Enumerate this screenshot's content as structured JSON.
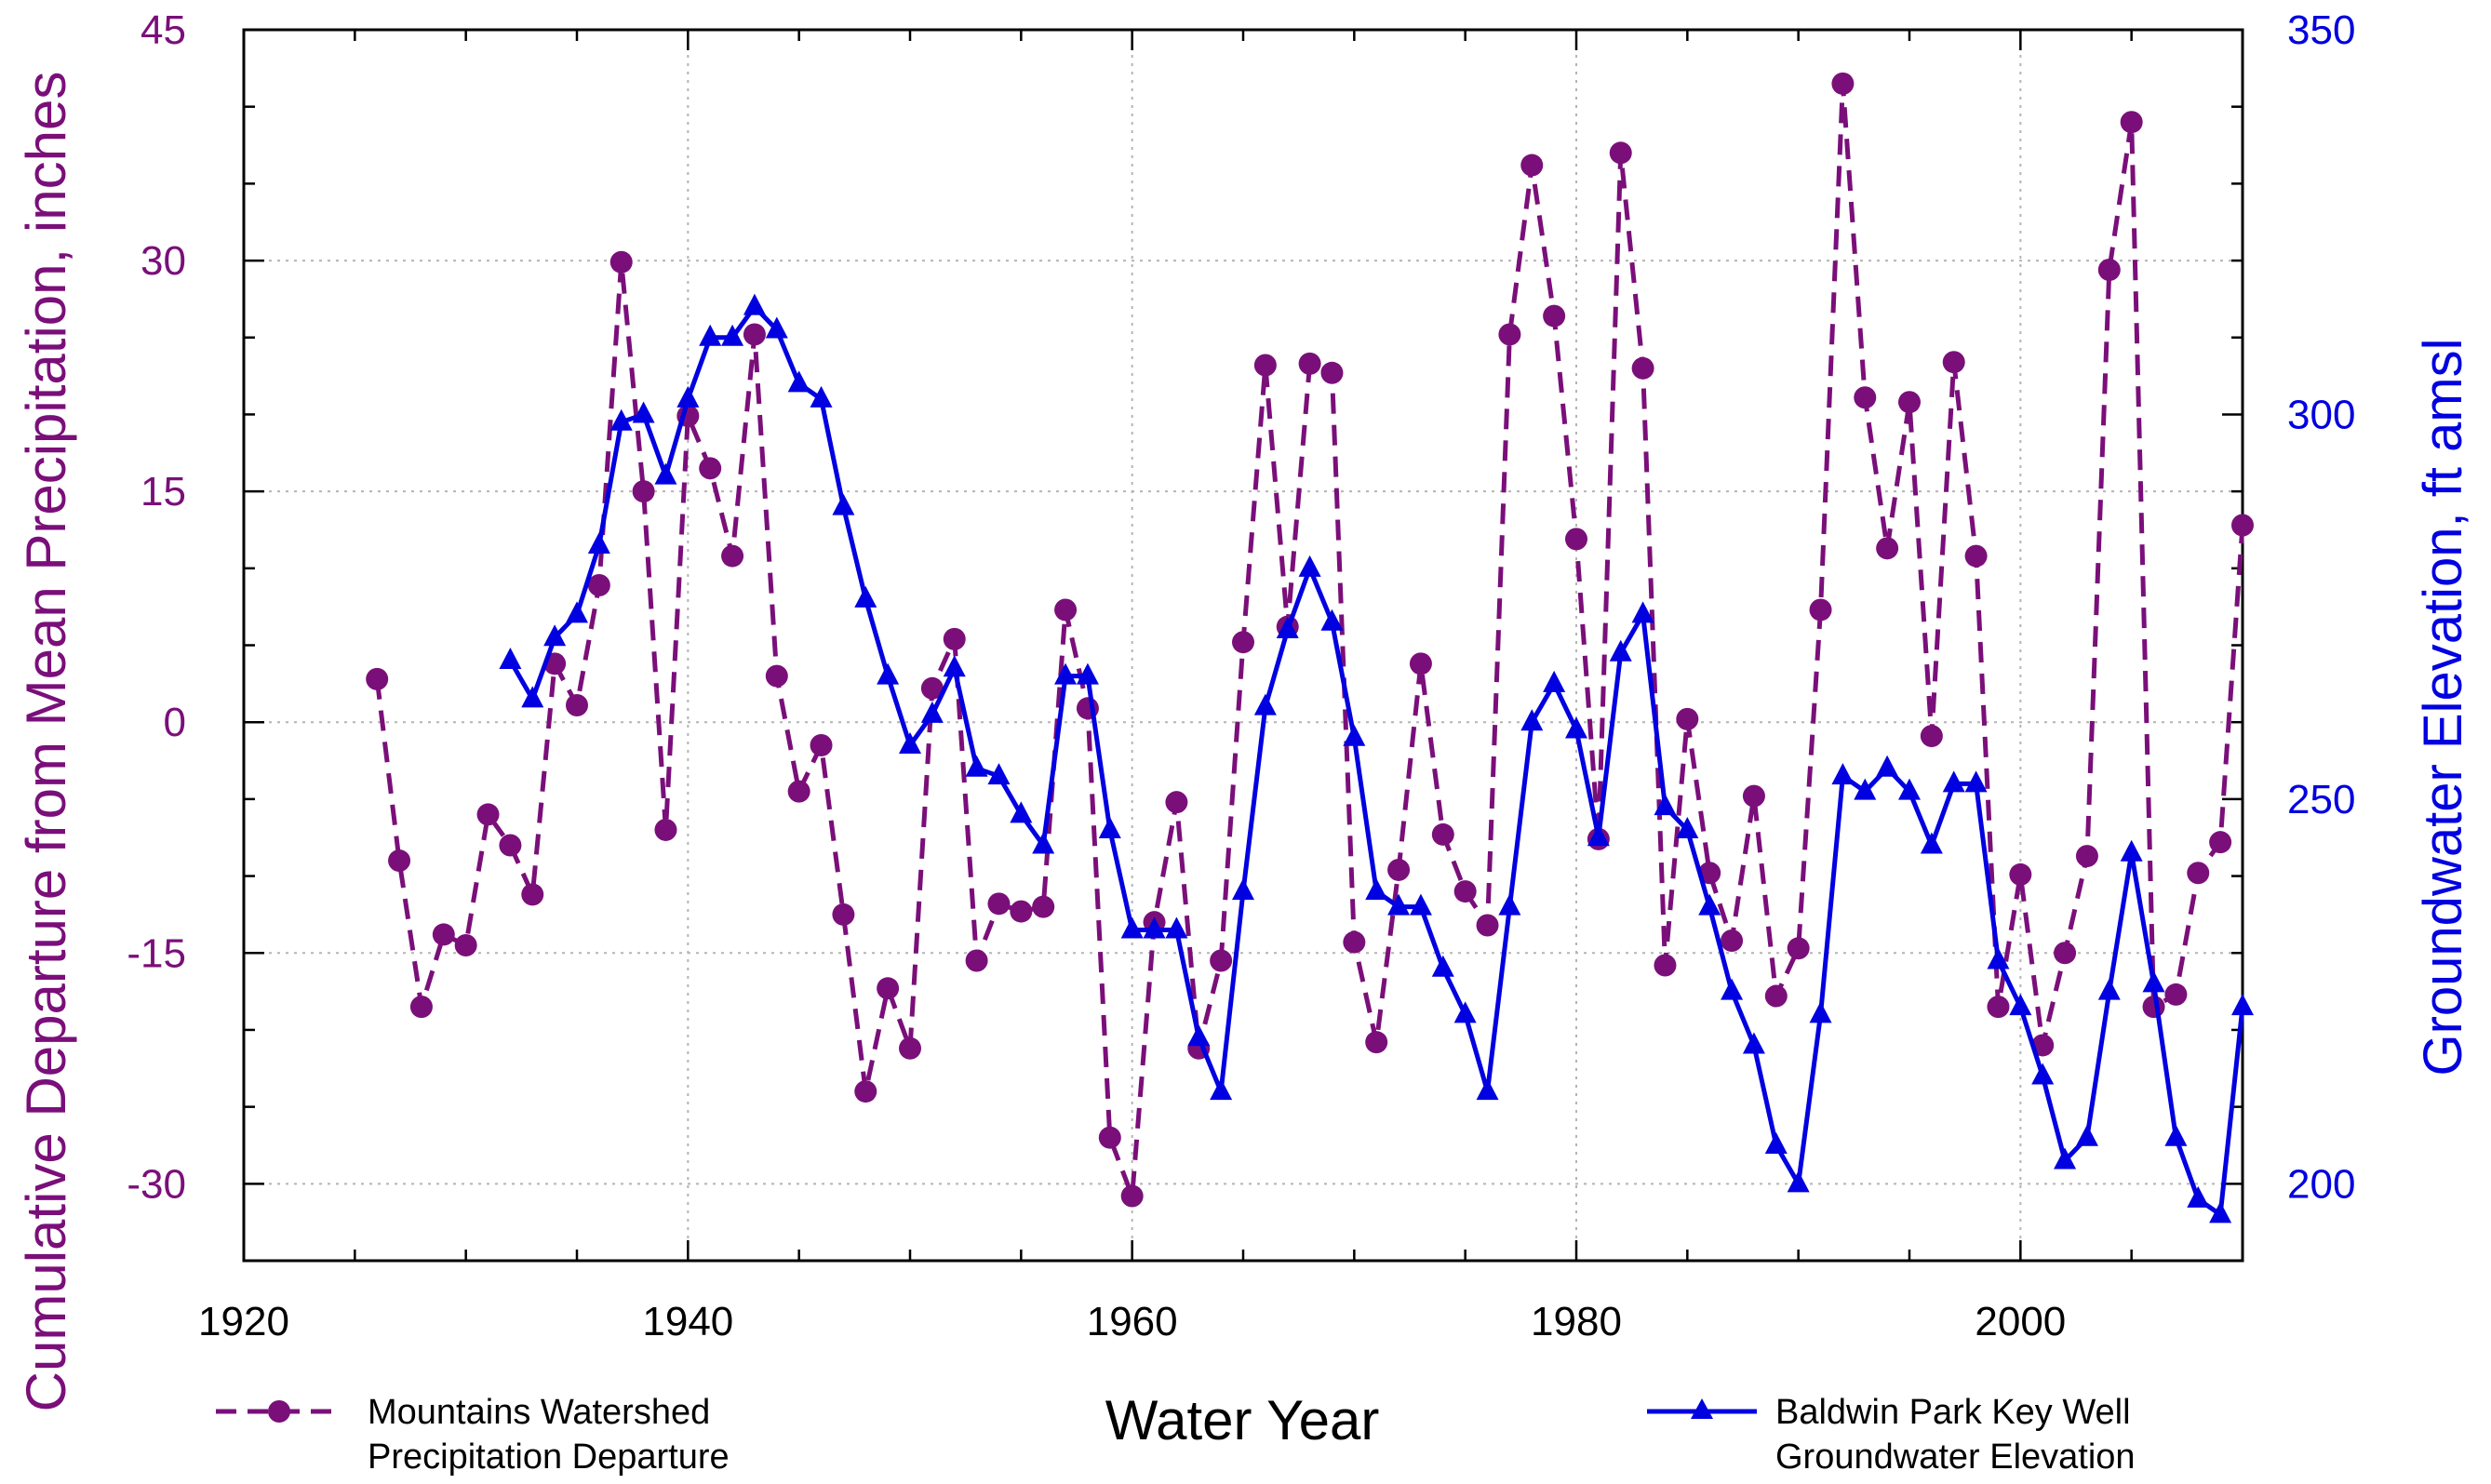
{
  "colors": {
    "precip": "#7a0f7a",
    "gw": "#0000e0",
    "grid": "#b4b4b4",
    "axis": "#000000"
  },
  "chart_data": {
    "type": "line",
    "xlabel": "Water Year",
    "ylabel_left": "Cumulative Departure from Mean Precipitation, inches",
    "ylabel_right": "Groundwater Elevation, ft amsl",
    "xlim": [
      1920,
      2010
    ],
    "ylim_left": [
      -35,
      45
    ],
    "ylim_right": [
      190,
      350
    ],
    "x_ticks": [
      "1920",
      "1940",
      "1960",
      "1980",
      "2000"
    ],
    "y_left_ticks": [
      "45",
      "30",
      "15",
      "0",
      "-15",
      "-30"
    ],
    "y_right_ticks": [
      "350",
      "300",
      "250",
      "200"
    ],
    "grid": true,
    "series": [
      {
        "name_lines": [
          "Mountains Watershed",
          "Precipitation Departure"
        ],
        "axis": "left",
        "style": "dashed-circle",
        "x": [
          1926,
          1927,
          1928,
          1929,
          1930,
          1931,
          1932,
          1933,
          1934,
          1935,
          1936,
          1937,
          1938,
          1939,
          1940,
          1941,
          1942,
          1943,
          1944,
          1945,
          1946,
          1947,
          1948,
          1949,
          1950,
          1951,
          1952,
          1953,
          1954,
          1955,
          1956,
          1957,
          1958,
          1959,
          1960,
          1961,
          1962,
          1963,
          1964,
          1965,
          1966,
          1967,
          1968,
          1969,
          1970,
          1971,
          1972,
          1973,
          1974,
          1975,
          1976,
          1977,
          1978,
          1979,
          1980,
          1981,
          1982,
          1983,
          1984,
          1985,
          1986,
          1987,
          1988,
          1989,
          1990,
          1991,
          1992,
          1993,
          1994,
          1995,
          1996,
          1997,
          1998,
          1999,
          2000,
          2001,
          2002,
          2003,
          2004,
          2005,
          2006,
          2007,
          2008,
          2009,
          2010
        ],
        "y": [
          2.8,
          -9,
          -18.5,
          -13.8,
          -14.5,
          -6,
          -8,
          -11.2,
          3.8,
          1.1,
          8.9,
          29.9,
          15,
          -7,
          19.9,
          16.5,
          10.8,
          25.2,
          3,
          -4.5,
          -1.5,
          -12.5,
          -24,
          -17.3,
          -21.2,
          2.2,
          5.4,
          -15.5,
          -11.8,
          -12.3,
          -12,
          7.3,
          0.9,
          -27,
          -30.8,
          -13,
          -5.2,
          -21.2,
          -15.5,
          5.2,
          23.2,
          6.2,
          23.3,
          22.7,
          -14.3,
          -20.8,
          -9.6,
          3.8,
          -7.3,
          -11,
          -13.2,
          25.2,
          36.2,
          26.4,
          11.9,
          -7.6,
          37,
          23,
          -15.8,
          0.2,
          -9.8,
          -14.2,
          -4.8,
          -17.8,
          -14.7,
          7.3,
          41.5,
          21.1,
          11.3,
          20.8,
          -0.9,
          23.4,
          10.8,
          -18.5,
          -9.9,
          -21,
          -15,
          -8.7,
          29.4,
          39,
          -18.5,
          -17.7,
          -9.8,
          -7.8,
          12.8
        ]
      },
      {
        "name_lines": [
          "Baldwin Park Key Well",
          "Groundwater Elevation"
        ],
        "axis": "right",
        "style": "solid-triangle",
        "x": [
          1932,
          1933,
          1934,
          1935,
          1936,
          1937,
          1938,
          1939,
          1940,
          1941,
          1942,
          1943,
          1944,
          1945,
          1946,
          1947,
          1948,
          1949,
          1950,
          1951,
          1952,
          1953,
          1954,
          1955,
          1956,
          1957,
          1958,
          1959,
          1960,
          1961,
          1962,
          1963,
          1964,
          1965,
          1966,
          1967,
          1968,
          1969,
          1970,
          1971,
          1972,
          1973,
          1974,
          1975,
          1976,
          1977,
          1978,
          1979,
          1980,
          1981,
          1982,
          1983,
          1984,
          1985,
          1986,
          1987,
          1988,
          1989,
          1990,
          1991,
          1992,
          1993,
          1994,
          1995,
          1996,
          1997,
          1998,
          1999,
          2000,
          2001,
          2002,
          2003,
          2004,
          2005,
          2006,
          2007,
          2008,
          2009,
          2010
        ],
        "y": [
          268,
          263,
          271,
          274,
          283,
          299,
          300,
          292,
          302,
          310,
          310,
          314,
          311,
          304,
          302,
          288,
          276,
          266,
          257,
          261,
          267,
          254,
          253,
          248,
          244,
          266,
          266,
          246,
          233,
          233,
          233,
          219,
          212,
          238,
          262,
          272,
          280,
          273,
          258,
          238,
          236,
          236,
          228,
          222,
          212,
          236,
          260,
          265,
          259,
          245,
          269,
          274,
          249,
          246,
          236,
          225,
          218,
          205,
          200,
          222,
          253,
          251,
          254,
          251,
          244,
          252,
          252,
          229,
          223,
          214,
          203,
          206,
          225,
          243,
          226,
          206,
          198,
          196,
          223
        ]
      }
    ]
  }
}
